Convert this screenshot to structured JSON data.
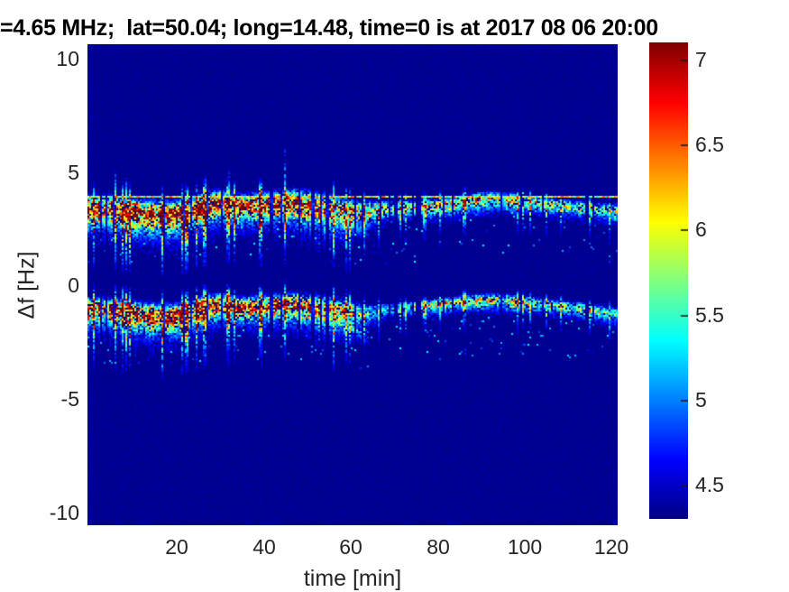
{
  "chart_data": {
    "type": "heatmap",
    "subtype": "doppler-spectrogram",
    "title": "=4.65 MHz;  lat=50.04; long=14.48, time=0 is at 2017 08 06 20:00",
    "xlabel": "time [min]",
    "ylabel": "Δf [Hz]",
    "xlim": [
      0,
      122
    ],
    "ylim": [
      -10.6,
      10.64
    ],
    "clim": [
      4.3,
      7.1
    ],
    "colormap": "jet",
    "grid": false,
    "background_value": 4.34,
    "xticks": [
      "20",
      "40",
      "60",
      "80",
      "100",
      "120"
    ],
    "xtick_values": [
      20,
      40,
      60,
      80,
      100,
      120
    ],
    "yticks": [
      "10",
      "5",
      "0",
      "-5",
      "-10"
    ],
    "ytick_values": [
      10,
      5,
      0,
      -5,
      -10
    ],
    "colorbar_ticks": [
      "7",
      "6.5",
      "6",
      "5.5",
      "5",
      "4.5"
    ],
    "colorbar_tick_values": [
      7,
      6.5,
      6,
      5.5,
      5,
      4.5
    ],
    "horizontal_line": {
      "freq": 3.93,
      "value_range": [
        5.3,
        6.6
      ]
    },
    "bands": [
      {
        "name": "upper-doppler-trace",
        "center": [
          [
            0,
            3.5
          ],
          [
            6,
            3.45
          ],
          [
            12,
            3.3
          ],
          [
            18,
            3.2
          ],
          [
            22,
            3.3
          ],
          [
            27,
            3.65
          ],
          [
            30,
            3.75
          ],
          [
            34,
            3.6
          ],
          [
            38,
            3.65
          ],
          [
            43,
            3.7
          ],
          [
            47,
            3.75
          ],
          [
            51,
            3.6
          ],
          [
            55,
            3.5
          ],
          [
            59,
            3.35
          ],
          [
            63,
            3.3
          ],
          [
            67,
            3.45
          ],
          [
            72,
            3.5
          ],
          [
            78,
            3.55
          ],
          [
            84,
            3.65
          ],
          [
            89,
            3.8
          ],
          [
            93,
            3.88
          ],
          [
            97,
            3.8
          ],
          [
            102,
            3.7
          ],
          [
            107,
            3.6
          ],
          [
            112,
            3.5
          ],
          [
            117,
            3.4
          ],
          [
            122,
            3.3
          ]
        ],
        "intensity": [
          [
            0,
            0.95
          ],
          [
            10,
            1
          ],
          [
            20,
            1
          ],
          [
            30,
            1
          ],
          [
            40,
            1
          ],
          [
            50,
            0.95
          ],
          [
            56,
            0.85
          ],
          [
            62,
            0.7
          ],
          [
            68,
            0.55
          ],
          [
            75,
            0.55
          ],
          [
            82,
            0.6
          ],
          [
            90,
            0.65
          ],
          [
            97,
            0.6
          ],
          [
            105,
            0.55
          ],
          [
            112,
            0.5
          ],
          [
            122,
            0.45
          ]
        ],
        "spread": [
          [
            0,
            0.5
          ],
          [
            15,
            0.55
          ],
          [
            25,
            0.5
          ],
          [
            35,
            0.45
          ],
          [
            45,
            0.5
          ],
          [
            55,
            0.6
          ],
          [
            62,
            0.45
          ],
          [
            68,
            0.3
          ],
          [
            78,
            0.28
          ],
          [
            88,
            0.3
          ],
          [
            98,
            0.28
          ],
          [
            110,
            0.25
          ],
          [
            122,
            0.3
          ]
        ],
        "branch": {
          "t0": 50,
          "t1": 64,
          "drop": 1.2,
          "intensity": 0.75
        },
        "has_upward_spikes": true
      },
      {
        "name": "lower-doppler-trace",
        "center": [
          [
            0,
            -0.95
          ],
          [
            6,
            -1.0
          ],
          [
            12,
            -1.2
          ],
          [
            18,
            -1.3
          ],
          [
            22,
            -1.2
          ],
          [
            27,
            -0.85
          ],
          [
            30,
            -0.75
          ],
          [
            34,
            -0.9
          ],
          [
            38,
            -0.85
          ],
          [
            43,
            -0.8
          ],
          [
            47,
            -0.75
          ],
          [
            51,
            -0.9
          ],
          [
            55,
            -1.0
          ],
          [
            59,
            -1.1
          ],
          [
            63,
            -1.2
          ],
          [
            67,
            -1.05
          ],
          [
            72,
            -0.95
          ],
          [
            78,
            -0.85
          ],
          [
            84,
            -0.7
          ],
          [
            89,
            -0.62
          ],
          [
            93,
            -0.6
          ],
          [
            97,
            -0.65
          ],
          [
            102,
            -0.75
          ],
          [
            107,
            -0.85
          ],
          [
            112,
            -0.95
          ],
          [
            117,
            -1.1
          ],
          [
            122,
            -1.25
          ]
        ],
        "intensity": [
          [
            0,
            0.9
          ],
          [
            10,
            0.95
          ],
          [
            20,
            0.95
          ],
          [
            30,
            0.95
          ],
          [
            40,
            0.9
          ],
          [
            50,
            0.85
          ],
          [
            56,
            0.8
          ],
          [
            60,
            0.65
          ],
          [
            64,
            0.4
          ],
          [
            68,
            0.3
          ],
          [
            73,
            0.45
          ],
          [
            80,
            0.55
          ],
          [
            88,
            0.6
          ],
          [
            95,
            0.6
          ],
          [
            103,
            0.55
          ],
          [
            110,
            0.5
          ],
          [
            118,
            0.45
          ],
          [
            122,
            0.4
          ]
        ],
        "spread": [
          [
            0,
            0.45
          ],
          [
            15,
            0.5
          ],
          [
            25,
            0.45
          ],
          [
            35,
            0.4
          ],
          [
            45,
            0.45
          ],
          [
            55,
            0.55
          ],
          [
            62,
            0.4
          ],
          [
            68,
            0.25
          ],
          [
            78,
            0.22
          ],
          [
            88,
            0.25
          ],
          [
            98,
            0.25
          ],
          [
            110,
            0.22
          ],
          [
            122,
            0.28
          ]
        ],
        "branch": {
          "t0": 50,
          "t1": 64,
          "drop": 1.3,
          "intensity": 0.8
        },
        "has_upward_spikes": false
      }
    ]
  }
}
